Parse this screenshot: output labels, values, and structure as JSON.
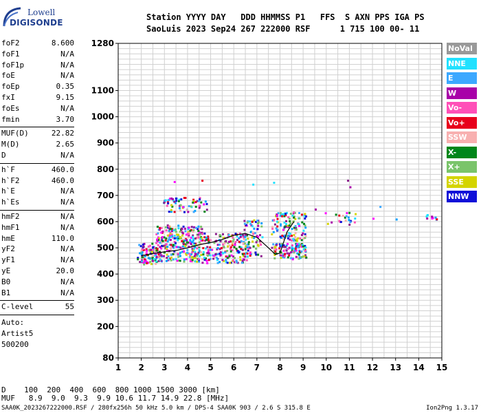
{
  "logo": {
    "line1": "Lowell",
    "line2": "DIGISONDE"
  },
  "header": {
    "line1": "Station YYYY DAY   DDD HHMMSS P1   FFS  S AXN PPS IGA PS",
    "line2": "SaoLuis 2023 Sep24 267 222000 RSF      1 715 100 00- 11"
  },
  "params_group1": [
    {
      "key": "foF2",
      "value": "8.600"
    },
    {
      "key": "foF1",
      "value": "N/A"
    },
    {
      "key": "foF1p",
      "value": "N/A"
    },
    {
      "key": "foE",
      "value": "N/A"
    },
    {
      "key": "foEp",
      "value": "0.35"
    },
    {
      "key": "fxI",
      "value": "9.15"
    },
    {
      "key": "foEs",
      "value": "N/A"
    },
    {
      "key": "fmin",
      "value": "3.70"
    }
  ],
  "params_group2": [
    {
      "key": "MUF(D)",
      "value": "22.82"
    },
    {
      "key": "M(D)",
      "value": "2.65"
    },
    {
      "key": "D",
      "value": "N/A"
    }
  ],
  "params_group3": [
    {
      "key": "h`F",
      "value": "460.0"
    },
    {
      "key": "h`F2",
      "value": "460.0"
    },
    {
      "key": "h`E",
      "value": "N/A"
    },
    {
      "key": "h`Es",
      "value": "N/A"
    }
  ],
  "params_group4": [
    {
      "key": "hmF2",
      "value": "N/A"
    },
    {
      "key": "hmF1",
      "value": "N/A"
    },
    {
      "key": "hmE",
      "value": "110.0"
    },
    {
      "key": "yF2",
      "value": "N/A"
    },
    {
      "key": "yF1",
      "value": "N/A"
    },
    {
      "key": "yE",
      "value": "20.0"
    },
    {
      "key": "B0",
      "value": "N/A"
    },
    {
      "key": "B1",
      "value": "N/A"
    }
  ],
  "c_level": {
    "key": "C-level",
    "value": "55"
  },
  "auto_block": [
    "Auto:",
    "Artist5",
    "500200"
  ],
  "legend": [
    {
      "label": "NoVal",
      "color": "#999999"
    },
    {
      "label": "NNE",
      "color": "#22e1ff"
    },
    {
      "label": "E",
      "color": "#3ca8ff"
    },
    {
      "label": "W",
      "color": "#a800a8"
    },
    {
      "label": "Vo-",
      "color": "#ff50b8"
    },
    {
      "label": "Vo+",
      "color": "#e8001c"
    },
    {
      "label": "SSW",
      "color": "#f8b0b0"
    },
    {
      "label": "X-",
      "color": "#00861a"
    },
    {
      "label": "X+",
      "color": "#7ac46a"
    },
    {
      "label": "SSE",
      "color": "#d4d400"
    },
    {
      "label": "NNW",
      "color": "#1010d8"
    }
  ],
  "muf_table": {
    "line1": "D    100  200  400  600  800 1000 1500 3000 [km]",
    "line2": "MUF   8.9  9.0  9.3  9.9 10.6 11.7 14.9 22.8 [MHz]"
  },
  "footer": {
    "left": "SAA0K_2023267222000.RSF / 280fx256h 50 kHz 5.0 km / DPS-4 SAA0K 903 / 2.6 S 315.8 E",
    "right": "Ion2Png 1.3.17"
  },
  "chart_data": {
    "type": "scatter",
    "xlim": [
      1,
      15
    ],
    "ylim": [
      80,
      1280
    ],
    "x_ticks": [
      1,
      2,
      3,
      4,
      5,
      6,
      7,
      8,
      9,
      10,
      11,
      12,
      13,
      14,
      15
    ],
    "y_ticks": [
      80,
      200,
      300,
      400,
      500,
      600,
      700,
      800,
      900,
      1000,
      1100,
      1280
    ],
    "grid": true,
    "legend_position": "right",
    "trace_line": {
      "x": [
        2.0,
        2.5,
        3.0,
        3.5,
        4.0,
        4.5,
        5.0,
        5.5,
        6.0,
        6.5,
        7.0,
        7.5,
        7.8,
        8.0,
        8.3,
        8.6
      ],
      "y": [
        470,
        478,
        485,
        490,
        500,
        512,
        520,
        532,
        548,
        555,
        540,
        500,
        475,
        480,
        560,
        600
      ]
    },
    "echo_clusters": [
      {
        "x_range": [
          1.8,
          2.6
        ],
        "y_range": [
          440,
          520
        ],
        "density": 90
      },
      {
        "x_range": [
          2.6,
          4.6
        ],
        "y_range": [
          450,
          590
        ],
        "density": 320
      },
      {
        "x_range": [
          2.9,
          4.8
        ],
        "y_range": [
          640,
          695
        ],
        "density": 70
      },
      {
        "x_range": [
          4.6,
          6.6
        ],
        "y_range": [
          445,
          560
        ],
        "density": 200
      },
      {
        "x_range": [
          6.4,
          7.2
        ],
        "y_range": [
          470,
          610
        ],
        "density": 70
      },
      {
        "x_range": [
          7.6,
          9.1
        ],
        "y_range": [
          460,
          520
        ],
        "density": 120
      },
      {
        "x_range": [
          7.6,
          9.1
        ],
        "y_range": [
          530,
          640
        ],
        "density": 120
      },
      {
        "x_range": [
          9.9,
          11.3
        ],
        "y_range": [
          590,
          640
        ],
        "density": 22
      },
      {
        "x_range": [
          14.3,
          14.8
        ],
        "y_range": [
          610,
          630
        ],
        "density": 10
      }
    ]
  }
}
